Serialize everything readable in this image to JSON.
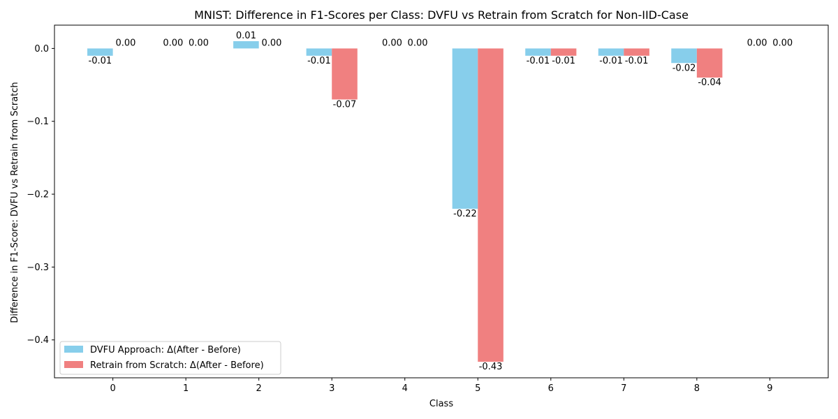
{
  "chart_data": {
    "type": "bar",
    "title": "MNIST: Difference in F1-Scores per Class: DVFU vs Retrain from Scratch for Non-IID-Case",
    "xlabel": "Class",
    "ylabel": "Difference in F1-Score: DVFU vs Retrain from Scratch",
    "categories": [
      "0",
      "1",
      "2",
      "3",
      "4",
      "5",
      "6",
      "7",
      "8",
      "9"
    ],
    "series": [
      {
        "name": "DVFU Approach: Δ(After - Before)",
        "color": "#87ceeb",
        "values": [
          -0.01,
          0.0,
          0.01,
          -0.01,
          0.0,
          -0.22,
          -0.01,
          -0.01,
          -0.02,
          0.0
        ],
        "labels": [
          "-0.01",
          "0.00",
          "0.01",
          "-0.01",
          "0.00",
          "-0.22",
          "-0.01",
          "-0.01",
          "-0.02",
          "0.00"
        ]
      },
      {
        "name": "Retrain from Scratch: Δ(After - Before)",
        "color": "#f08080",
        "values": [
          0.0,
          0.0,
          0.0,
          -0.07,
          0.0,
          -0.43,
          -0.01,
          -0.01,
          -0.04,
          0.0
        ],
        "labels": [
          "0.00",
          "0.00",
          "0.00",
          "-0.07",
          "0.00",
          "-0.43",
          "-0.01",
          "-0.01",
          "-0.04",
          "0.00"
        ]
      }
    ],
    "ylim": [
      -0.452,
      0.032
    ],
    "yticks": [
      0.0,
      -0.1,
      -0.2,
      -0.3,
      -0.4
    ],
    "ytick_labels": [
      "0.0",
      "−0.1",
      "−0.2",
      "−0.3",
      "−0.4"
    ],
    "grid": false,
    "legend_position": "lower-left"
  }
}
